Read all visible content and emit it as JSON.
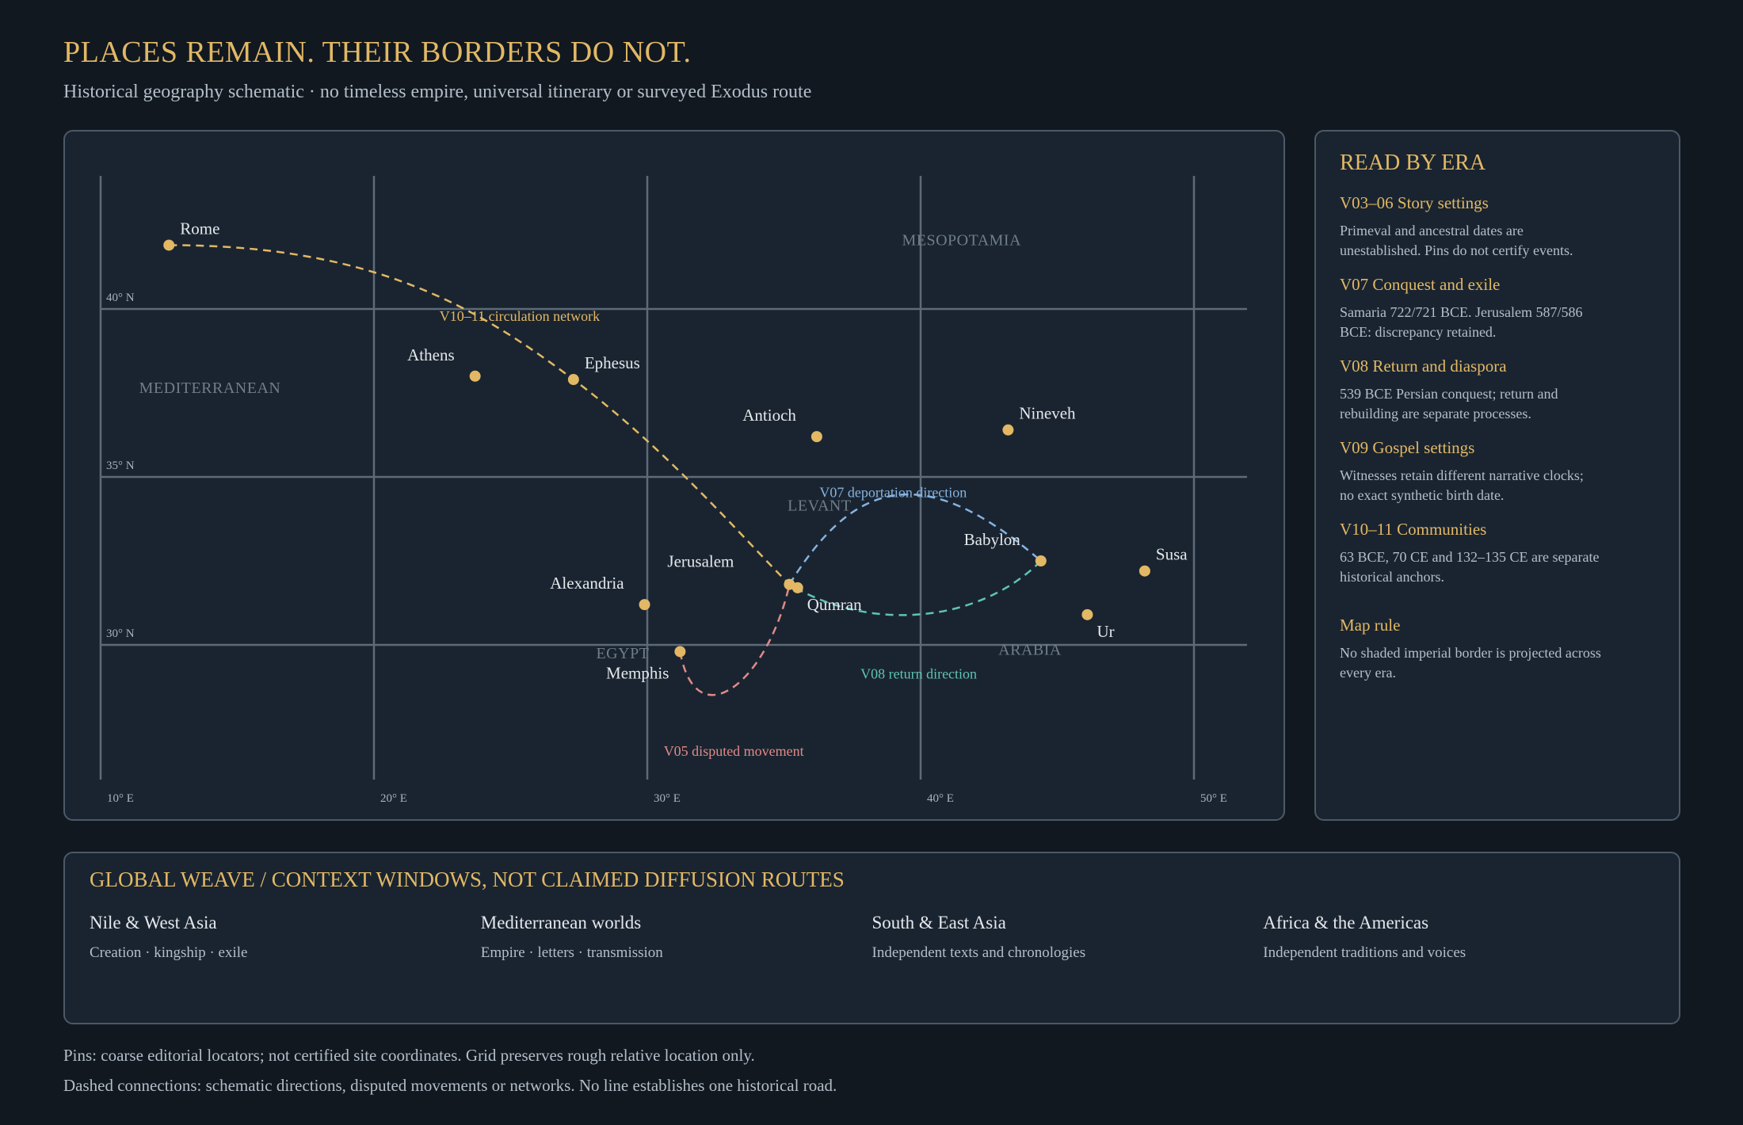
{
  "title": "PLACES REMAIN. THEIR BORDERS DO NOT.",
  "subtitle": "Historical geography schematic · no timeless empire, universal itinerary or surveyed Exodus route",
  "map": {
    "latitude_labels": [
      {
        "lat": 40,
        "label": "40° N"
      },
      {
        "lat": 35,
        "label": "35° N"
      },
      {
        "lat": 30,
        "label": "30° N"
      }
    ],
    "longitude_labels": [
      {
        "lon": 10,
        "label": "10° E"
      },
      {
        "lon": 20,
        "label": "20° E"
      },
      {
        "lon": 30,
        "label": "30° E"
      },
      {
        "lon": 40,
        "label": "40° E"
      },
      {
        "lon": 50,
        "label": "50° E"
      }
    ],
    "regions": [
      {
        "name": "MEDITERRANEAN",
        "lon": 14,
        "lat": 37.5
      },
      {
        "name": "MESOPOTAMIA",
        "lon": 41.5,
        "lat": 41.9
      },
      {
        "name": "LEVANT",
        "lon": 36.3,
        "lat": 34
      },
      {
        "name": "EGYPT",
        "lon": 29.1,
        "lat": 29.6
      },
      {
        "name": "ARABIA",
        "lon": 44,
        "lat": 29.7
      }
    ],
    "places": [
      {
        "name": "Rome",
        "lon": 12.5,
        "lat": 41.9,
        "label_pos": "above-right"
      },
      {
        "name": "Athens",
        "lon": 23.7,
        "lat": 38,
        "label_pos": "above-left"
      },
      {
        "name": "Ephesus",
        "lon": 27.3,
        "lat": 37.9,
        "label_pos": "above-right"
      },
      {
        "name": "Antioch",
        "lon": 36.2,
        "lat": 36.2,
        "label_pos": "above-left"
      },
      {
        "name": "Nineveh",
        "lon": 43.2,
        "lat": 36.4,
        "label_pos": "above-right"
      },
      {
        "name": "Babylon",
        "lon": 44.4,
        "lat": 32.5,
        "label_pos": "above-left"
      },
      {
        "name": "Susa",
        "lon": 48.2,
        "lat": 32.2,
        "label_pos": "above-right"
      },
      {
        "name": "Ur",
        "lon": 46.1,
        "lat": 30.9,
        "label_pos": "below-right"
      },
      {
        "name": "Jerusalem",
        "lon": 35.2,
        "lat": 31.8,
        "label_pos": "above-left-far"
      },
      {
        "name": "Qumran",
        "lon": 35.5,
        "lat": 31.7,
        "label_pos": "below-right"
      },
      {
        "name": "Alexandria",
        "lon": 29.9,
        "lat": 31.2,
        "label_pos": "above-left"
      },
      {
        "name": "Memphis",
        "lon": 31.2,
        "lat": 29.8,
        "label_pos": "below-left"
      }
    ],
    "routes": [
      {
        "id": "v10",
        "label": "V10–11 circulation network",
        "color": "#e2b865"
      },
      {
        "id": "v07",
        "label": "V07 deportation direction",
        "color": "#86b3e0"
      },
      {
        "id": "v08",
        "label": "V08 return direction",
        "color": "#5ec4b6"
      },
      {
        "id": "v05",
        "label": "V05 disputed movement",
        "color": "#e08a8a"
      }
    ]
  },
  "era_panel": {
    "heading": "READ BY ERA",
    "items": [
      {
        "title": "V03–06 Story settings",
        "desc": "Primeval and ancestral dates are unestablished. Pins do not certify events."
      },
      {
        "title": "V07 Conquest and exile",
        "desc": "Samaria 722/721 BCE. Jerusalem 587/586 BCE: discrepancy retained."
      },
      {
        "title": "V08 Return and diaspora",
        "desc": "539 BCE Persian conquest; return and rebuilding are separate processes."
      },
      {
        "title": "V09 Gospel settings",
        "desc": "Witnesses retain different narrative clocks; no exact synthetic birth date."
      },
      {
        "title": "V10–11 Communities",
        "desc": "63 BCE, 70 CE and 132–135 CE are separate historical anchors."
      }
    ],
    "rule_title": "Map rule",
    "rule_desc": "No shaded imperial border is projected across every era."
  },
  "weave": {
    "heading": "GLOBAL WEAVE / CONTEXT WINDOWS, NOT CLAIMED DIFFUSION ROUTES",
    "columns": [
      {
        "title": "Nile & West Asia",
        "desc": "Creation · kingship · exile"
      },
      {
        "title": "Mediterranean worlds",
        "desc": "Empire · letters · transmission"
      },
      {
        "title": "South & East Asia",
        "desc": "Independent texts and chronologies"
      },
      {
        "title": "Africa & the Americas",
        "desc": "Independent traditions and voices"
      }
    ]
  },
  "footnotes": [
    "Pins: coarse editorial locators; not certified site coordinates. Grid preserves rough relative location only.",
    "Dashed connections: schematic directions, disputed movements or networks. No line establishes one historical road."
  ],
  "colors": {
    "accent": "#e2b865",
    "pin": "#e2b865",
    "grid": "#5d6a78",
    "region": "#6f7d8b"
  }
}
